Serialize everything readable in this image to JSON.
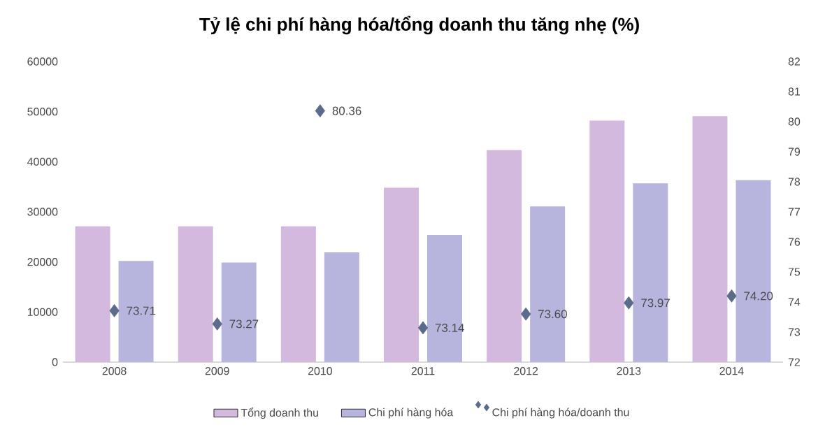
{
  "chart_data": {
    "type": "bar",
    "title": "Tỷ lệ chi phí hàng hóa/tổng doanh thu tăng nhẹ (%)",
    "categories": [
      "2008",
      "2009",
      "2010",
      "2011",
      "2012",
      "2013",
      "2014"
    ],
    "series": [
      {
        "name": "Tổng doanh thu",
        "color": "#d4b9de",
        "values": [
          27100,
          27100,
          27100,
          34800,
          42300,
          48200,
          49100
        ]
      },
      {
        "name": "Chi phí hàng hóa",
        "color": "#b7b5de",
        "values": [
          20200,
          19900,
          21900,
          25400,
          31100,
          35700,
          36300
        ]
      },
      {
        "name": "Chi phí hàng hóa/doanh thu",
        "type": "scatter",
        "axis": "y2",
        "color": "#5b6b8c",
        "marker": "diamond",
        "values": [
          73.71,
          73.27,
          80.36,
          73.14,
          73.6,
          73.97,
          74.2
        ],
        "value_labels": [
          "73.71",
          "73.27",
          "80.36",
          "73.14",
          "73.60",
          "73.97",
          "74.20"
        ]
      }
    ],
    "ylim": [
      0,
      60000
    ],
    "yticks": [
      0,
      10000,
      20000,
      30000,
      40000,
      50000,
      60000
    ],
    "y2lim": [
      72,
      82
    ],
    "y2ticks": [
      72,
      73,
      74,
      75,
      76,
      77,
      78,
      79,
      80,
      81,
      82
    ],
    "legend": "bottom",
    "grid": false
  }
}
